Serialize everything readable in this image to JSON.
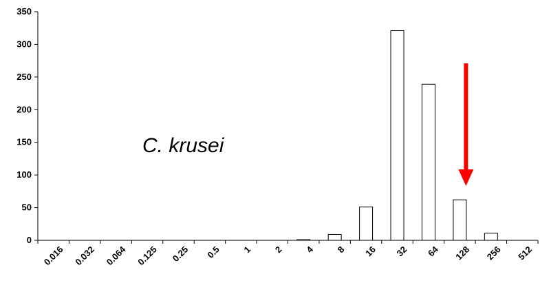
{
  "chart_data": {
    "type": "bar",
    "categories": [
      "0.016",
      "0.032",
      "0.064",
      "0.125",
      "0.25",
      "0.5",
      "1",
      "2",
      "4",
      "8",
      "16",
      "32",
      "64",
      "128",
      "256",
      "512"
    ],
    "values": [
      0,
      0,
      0,
      0,
      0,
      0,
      0,
      0,
      1,
      9,
      51,
      321,
      239,
      62,
      11,
      0
    ],
    "title": "",
    "xlabel": "",
    "ylabel": "",
    "ylim": [
      0,
      350
    ],
    "yticks": [
      0,
      50,
      100,
      150,
      200,
      250,
      300,
      350
    ],
    "grid": false,
    "bar_fill": "#ffffff",
    "bar_stroke": "#000000",
    "annotation": {
      "text": "C. krusei"
    },
    "arrow": {
      "color": "#ff0000",
      "points_at_category": "128"
    }
  }
}
